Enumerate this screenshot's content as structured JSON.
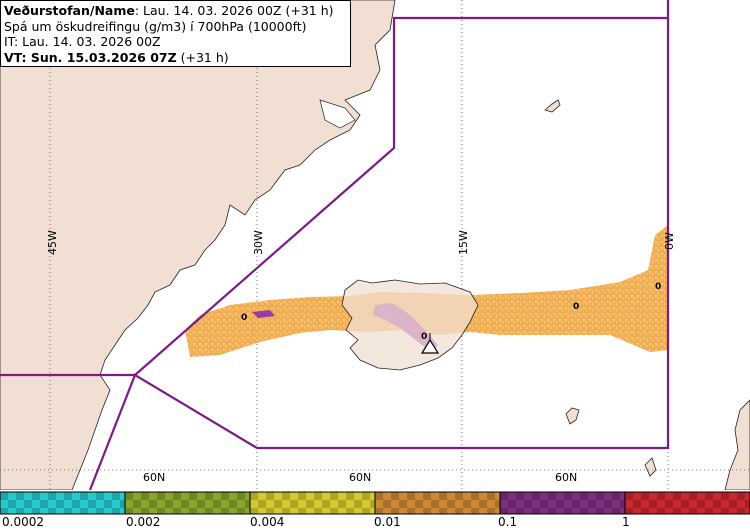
{
  "info": {
    "line1_label": "Veðurstofan/Name",
    "line1_value": ": Lau. 14. 03. 2026 00Z (+31 h)",
    "line2": "Spá um öskudreifingu (g/m3) í 700hPa (10000ft)",
    "line3": "IT: Lau. 14. 03. 2026 00Z",
    "line4_label": "VT: Sun. 15.03.2026 07Z",
    "line4_value": " (+31 h)"
  },
  "grid_labels": {
    "lon": [
      "45W",
      "30W",
      "15W",
      "0W"
    ],
    "lat": [
      "60N",
      "60N",
      "60N"
    ]
  },
  "plume_markers": [
    "0",
    "0",
    "0",
    "0"
  ],
  "legend": {
    "colors": [
      "#26c9cc",
      "#87a62a",
      "#d4cc2e",
      "#cc8a38",
      "#7c2e7d",
      "#c9282e"
    ],
    "ticks": [
      "0.0002",
      "0.002",
      "0.004",
      "0.01",
      "0.1",
      "1"
    ]
  },
  "colors": {
    "land": "#f0dfd2",
    "sea": "#ffffff",
    "boundary": "#7b1b85",
    "plume_low": "#f9b25c",
    "plume_high": "#9a3aa8"
  }
}
